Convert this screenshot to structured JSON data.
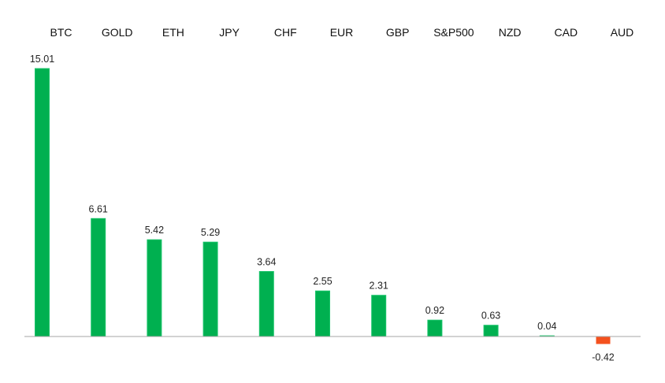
{
  "chart_data": {
    "type": "bar",
    "categories": [
      "BTC",
      "GOLD",
      "ETH",
      "JPY",
      "CHF",
      "EUR",
      "GBP",
      "S&P500",
      "NZD",
      "CAD",
      "AUD"
    ],
    "values": [
      15.01,
      6.61,
      5.42,
      5.29,
      3.64,
      2.55,
      2.31,
      0.92,
      0.63,
      0.04,
      -0.42
    ],
    "value_labels": [
      "15.01",
      "6.61",
      "5.42",
      "5.29",
      "3.64",
      "2.55",
      "2.31",
      "0.92",
      "0.63",
      "0.04",
      "-0.42"
    ],
    "title": "",
    "xlabel": "",
    "ylabel": "",
    "ylim": [
      -0.5,
      15.2
    ],
    "grid": false,
    "legend": "none",
    "category_labels_position": "top",
    "colors": {
      "positive": "#00b050",
      "positive_edge": "#19c46a",
      "negative": "#f4511e",
      "axis": "#a6a6a6"
    }
  }
}
